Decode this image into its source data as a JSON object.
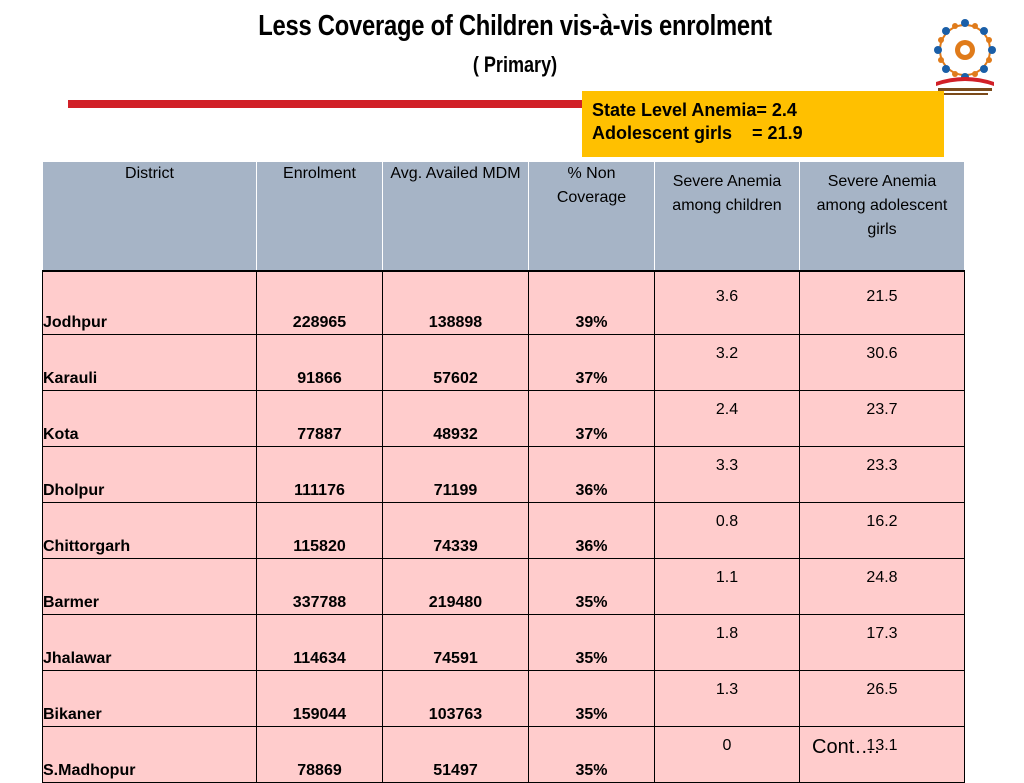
{
  "header": {
    "title": "Less Coverage of Children vis-à-vis enrolment",
    "subtitle": "( Primary)"
  },
  "info_box": {
    "line1": "State Level Anemia= 2.4",
    "line2": "Adolescent girls    = 21.9"
  },
  "table": {
    "columns": [
      "District",
      "Enrolment",
      "Avg. Availed MDM",
      "% Non Coverage",
      "Severe Anemia among children",
      "Severe Anemia among adolescent girls"
    ],
    "rows": [
      [
        "Jodhpur",
        "228965",
        "138898",
        "39%",
        "3.6",
        "21.5"
      ],
      [
        "Karauli",
        "91866",
        "57602",
        "37%",
        "3.2",
        "30.6"
      ],
      [
        "Kota",
        "77887",
        "48932",
        "37%",
        "2.4",
        "23.7"
      ],
      [
        "Dholpur",
        "111176",
        "71199",
        "36%",
        "3.3",
        "23.3"
      ],
      [
        "Chittorgarh",
        "115820",
        "74339",
        "36%",
        "0.8",
        "16.2"
      ],
      [
        "Barmer",
        "337788",
        "219480",
        "35%",
        "1.1",
        "24.8"
      ],
      [
        "Jhalawar",
        "114634",
        "74591",
        "35%",
        "1.8",
        "17.3"
      ],
      [
        "Bikaner",
        "159044",
        "103763",
        "35%",
        "1.3",
        "26.5"
      ],
      [
        "S.Madhopur",
        "78869",
        "51497",
        "35%",
        "0",
        "13.1"
      ]
    ]
  },
  "footer": {
    "cont": "Cont…."
  },
  "logo": {
    "icon": "mid-day-meal-scheme-logo-icon",
    "colors": [
      "#1a5fa8",
      "#e07b1a",
      "#d12027"
    ]
  }
}
